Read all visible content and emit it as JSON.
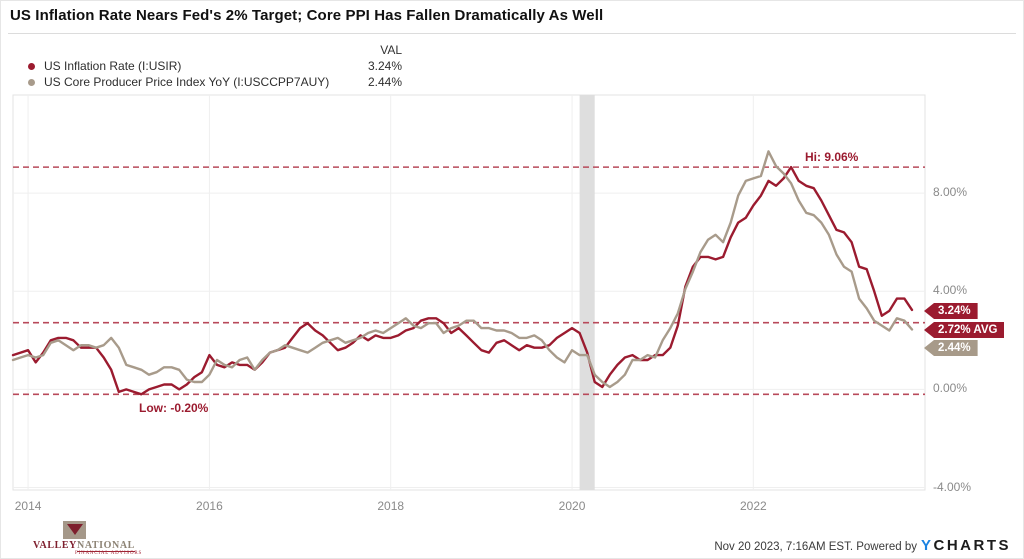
{
  "title": "US Inflation Rate Nears Fed's 2% Target; Core PPI Has Fallen Dramatically As Well",
  "legend": {
    "val_header": "VAL",
    "series": [
      {
        "label": "US Inflation Rate (I:USIR)",
        "value": "3.24%",
        "color": "#9b1b2f"
      },
      {
        "label": "US Core Producer Price Index YoY (I:USCCPP7AUY)",
        "value": "2.44%",
        "color": "#a89b8b"
      }
    ]
  },
  "chart_data": {
    "type": "line",
    "frequency": "monthly",
    "xlim": [
      "2013-11",
      "2023-10"
    ],
    "ylim": [
      -4.1,
      12.0
    ],
    "grid": true,
    "x_ticks": [
      {
        "label": "2014",
        "month_index": 2
      },
      {
        "label": "2016",
        "month_index": 26
      },
      {
        "label": "2018",
        "month_index": 50
      },
      {
        "label": "2020",
        "month_index": 74
      },
      {
        "label": "2022",
        "month_index": 98
      }
    ],
    "y_ticks": [
      {
        "label": "8.00%",
        "value": 8
      },
      {
        "label": "4.00%",
        "value": 4
      },
      {
        "label": "0.00%",
        "value": 0
      },
      {
        "label": "-4.00%",
        "value": -4
      }
    ],
    "annotations": {
      "high": {
        "label": "Hi: 9.06%",
        "value": 9.06
      },
      "low": {
        "label": "Low: -0.20%",
        "value": -0.2
      },
      "avg": {
        "label": "2.72% AVG",
        "value": 2.72
      }
    },
    "recession_band": {
      "from": "2020-02",
      "to": "2020-04",
      "from_month_index": 75,
      "to_month_index": 77
    },
    "series": [
      {
        "id": "us-inflation-rate",
        "name": "US Inflation Rate (I:USIR)",
        "color": "#9b1b2f",
        "values": [
          1.4,
          1.5,
          1.6,
          1.1,
          1.5,
          2.0,
          2.1,
          2.1,
          2.0,
          1.7,
          1.7,
          1.7,
          1.3,
          0.8,
          -0.1,
          0.0,
          -0.1,
          -0.2,
          0.0,
          0.1,
          0.2,
          0.2,
          0.0,
          0.2,
          0.5,
          0.7,
          1.4,
          1.0,
          0.9,
          1.1,
          1.0,
          1.0,
          0.8,
          1.1,
          1.5,
          1.6,
          1.7,
          2.1,
          2.5,
          2.7,
          2.4,
          2.2,
          1.9,
          1.6,
          1.7,
          1.9,
          2.2,
          2.0,
          2.2,
          2.1,
          2.1,
          2.2,
          2.4,
          2.5,
          2.8,
          2.9,
          2.9,
          2.7,
          2.3,
          2.5,
          2.2,
          1.9,
          1.6,
          1.5,
          1.9,
          2.0,
          1.8,
          1.6,
          1.8,
          1.7,
          1.7,
          1.8,
          2.1,
          2.3,
          2.5,
          2.3,
          1.5,
          0.3,
          0.1,
          0.6,
          1.0,
          1.3,
          1.4,
          1.2,
          1.2,
          1.4,
          1.4,
          1.7,
          2.6,
          4.2,
          5.0,
          5.4,
          5.4,
          5.3,
          5.4,
          6.2,
          6.8,
          7.0,
          7.5,
          7.9,
          8.5,
          8.3,
          8.6,
          9.06,
          8.5,
          8.3,
          8.2,
          7.7,
          7.1,
          6.5,
          6.4,
          6.0,
          5.0,
          4.9,
          4.0,
          3.0,
          3.2,
          3.7,
          3.7,
          3.24
        ]
      },
      {
        "id": "us-core-ppi-yoy",
        "name": "US Core Producer Price Index YoY (I:USCCPP7AUY)",
        "color": "#a89b8b",
        "values": [
          1.2,
          1.3,
          1.4,
          1.3,
          1.4,
          1.9,
          2.0,
          1.8,
          1.6,
          1.8,
          1.8,
          1.7,
          1.8,
          2.1,
          1.7,
          1.0,
          0.9,
          0.8,
          0.6,
          0.7,
          0.9,
          0.9,
          0.8,
          0.4,
          0.3,
          0.3,
          0.6,
          1.2,
          1.0,
          0.9,
          1.2,
          1.3,
          0.8,
          1.2,
          1.5,
          1.6,
          1.8,
          1.7,
          1.6,
          1.5,
          1.7,
          1.9,
          2.0,
          2.1,
          1.9,
          2.0,
          2.1,
          2.3,
          2.4,
          2.3,
          2.5,
          2.7,
          2.9,
          2.6,
          2.5,
          2.7,
          2.7,
          2.3,
          2.5,
          2.6,
          2.8,
          2.8,
          2.5,
          2.5,
          2.4,
          2.4,
          2.3,
          2.1,
          2.1,
          2.2,
          2.0,
          1.6,
          1.3,
          1.1,
          1.6,
          1.4,
          1.4,
          0.6,
          0.3,
          0.1,
          0.3,
          0.6,
          1.2,
          1.2,
          1.4,
          1.3,
          2.0,
          2.5,
          3.1,
          4.1,
          4.8,
          5.6,
          6.1,
          6.3,
          6.0,
          6.8,
          7.9,
          8.5,
          8.6,
          8.7,
          9.7,
          9.1,
          8.8,
          8.4,
          7.7,
          7.2,
          7.1,
          6.8,
          6.3,
          5.5,
          5.0,
          4.8,
          3.7,
          3.3,
          2.8,
          2.6,
          2.4,
          2.9,
          2.8,
          2.44
        ]
      }
    ]
  },
  "badges": [
    {
      "text": "3.24%",
      "color": "#9b1b2f"
    },
    {
      "text": "2.72% AVG",
      "color": "#9b1b2f"
    },
    {
      "text": "2.44%",
      "color": "#a79a89"
    }
  ],
  "footer": {
    "timestamp": "Nov 20 2023, 7:16AM EST. Powered by",
    "ycharts": {
      "y": "Y",
      "charts": "CHARTS"
    },
    "brand": {
      "name_left": "VALLEY",
      "name_right": "NATIONAL",
      "tagline": "FINANCIAL ADVISORS"
    }
  }
}
